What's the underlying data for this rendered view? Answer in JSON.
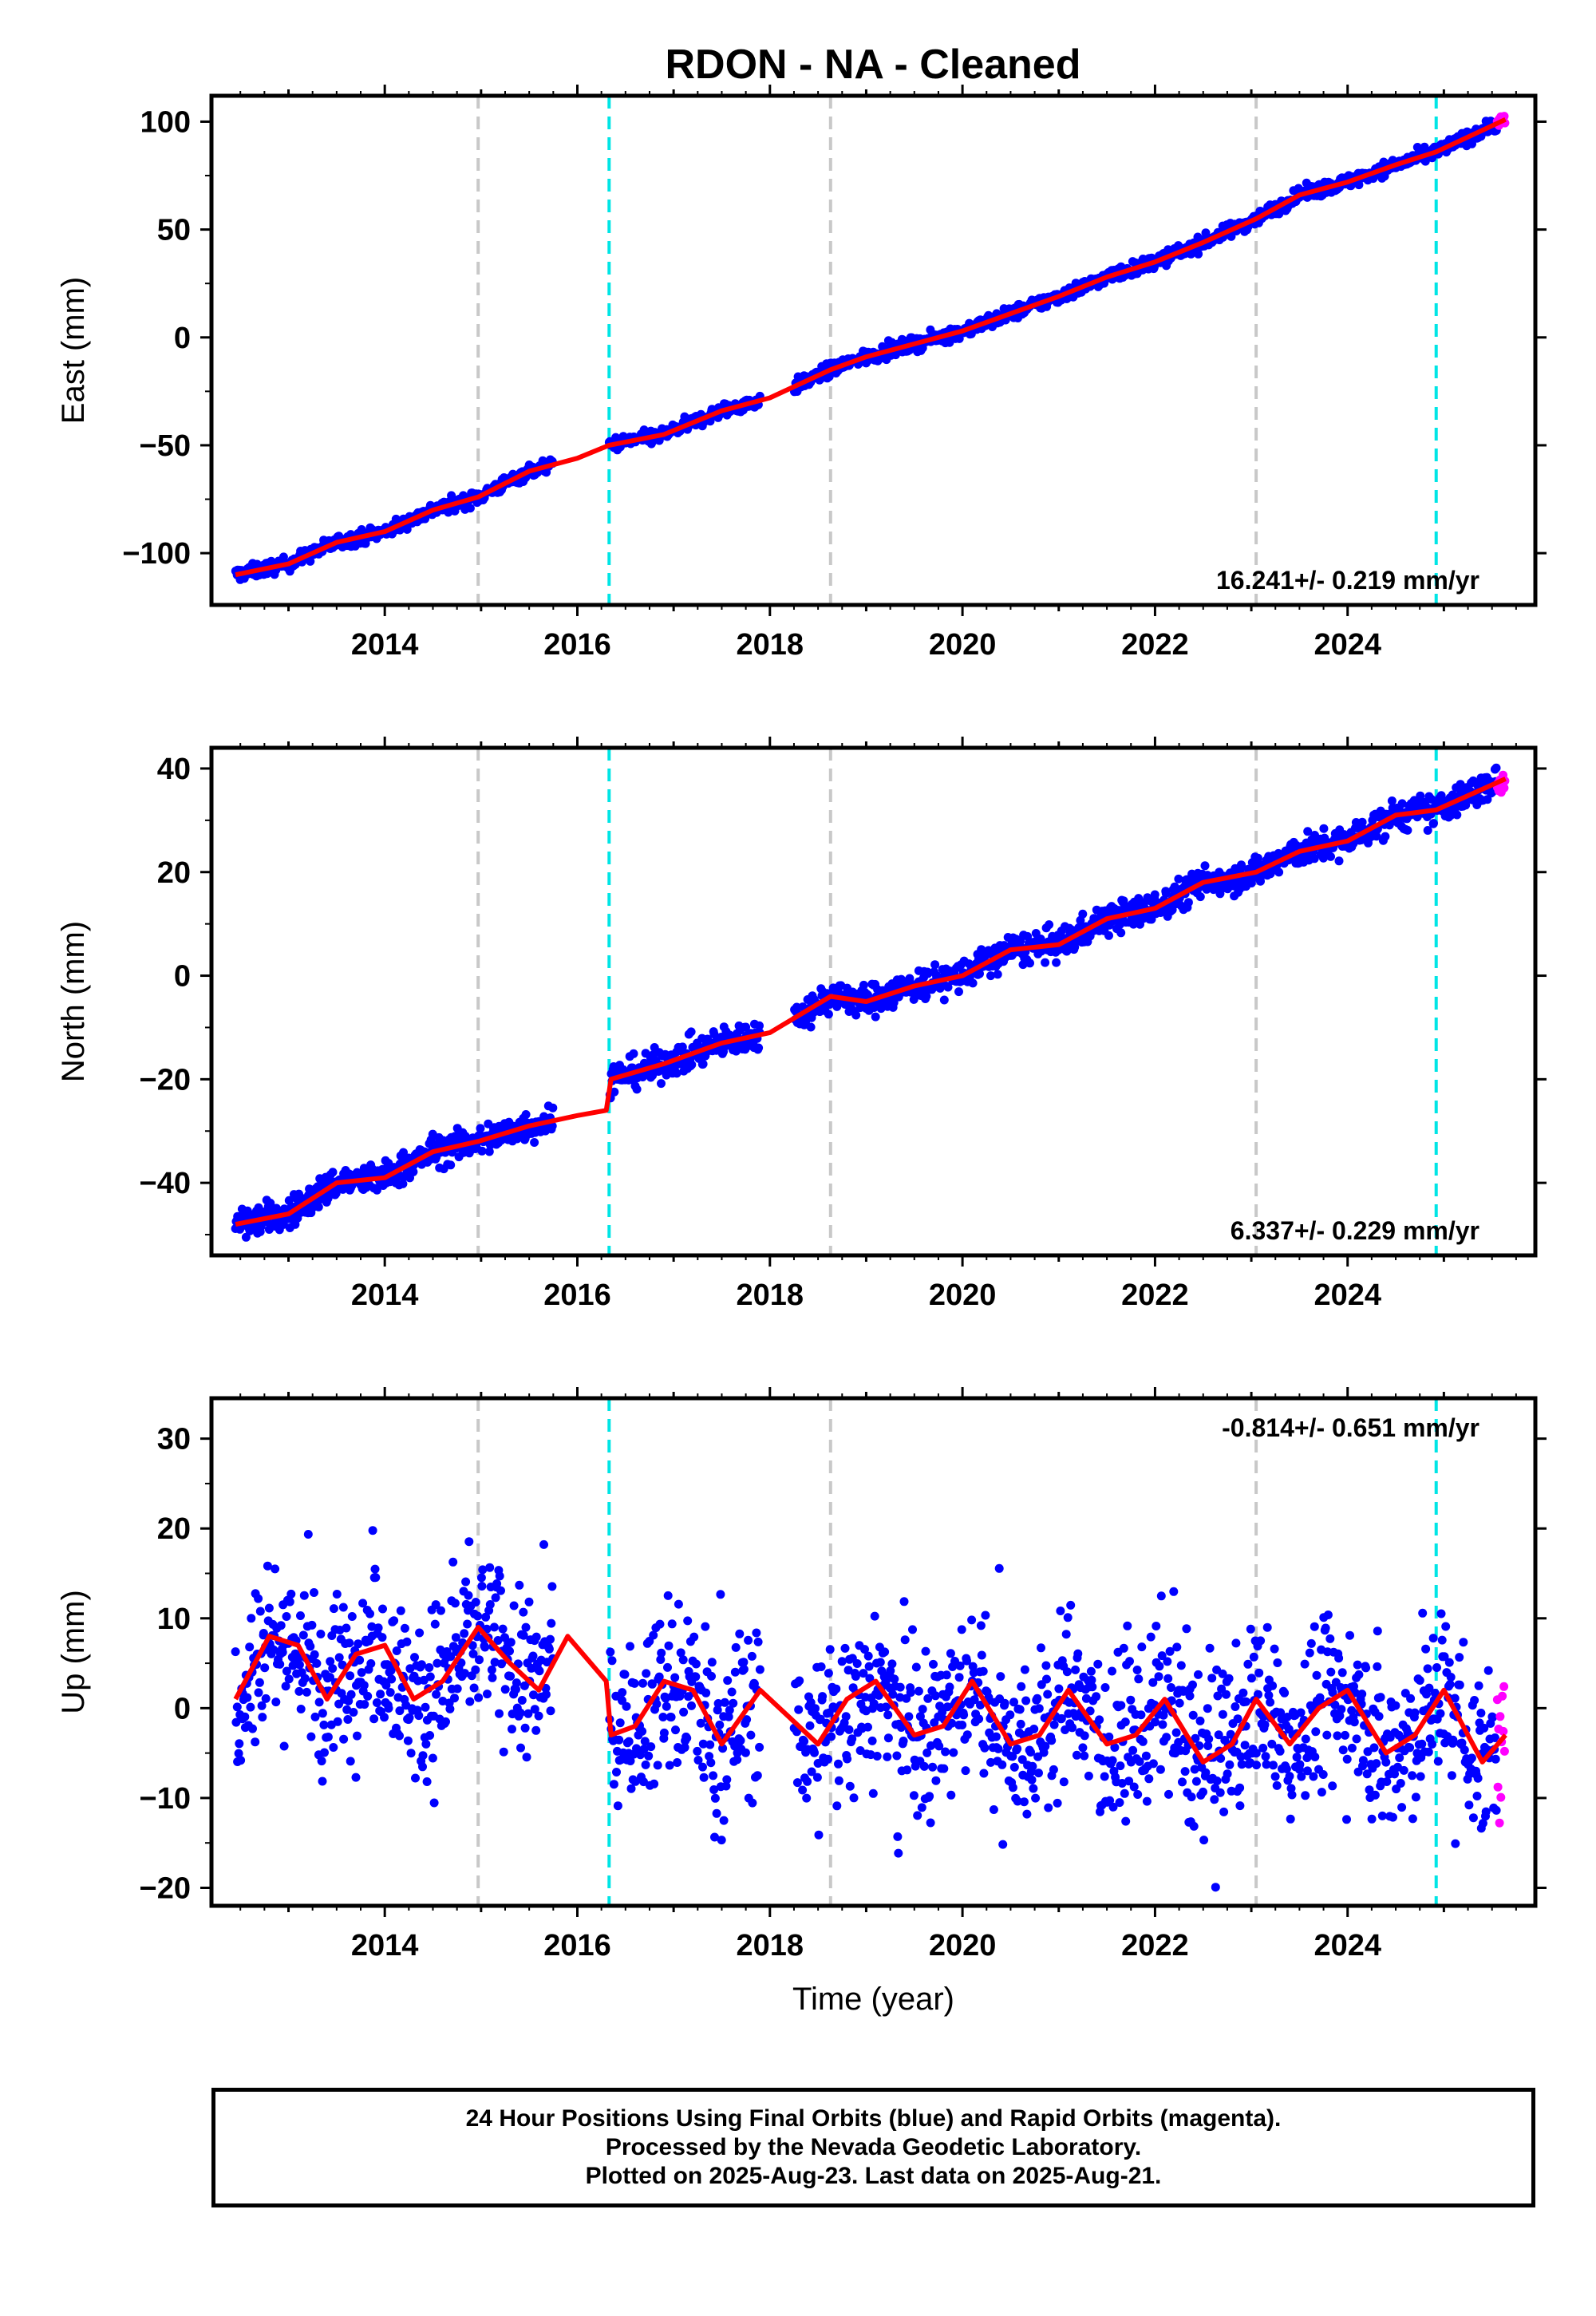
{
  "title": "RDON  - NA - Cleaned",
  "colors": {
    "final_orbits": "#0000ff",
    "rapid_orbits": "#ff00ff",
    "model": "#ff0000",
    "equipment_change": "#c8c8c8",
    "offset_marker": "#00e5e5"
  },
  "events": {
    "gray_dashed": [
      2014.97,
      2018.63,
      2023.05
    ],
    "cyan_dashed": [
      2016.33,
      2024.92
    ]
  },
  "footer": {
    "line1": "24 Hour Positions Using Final Orbits (blue) and Rapid Orbits (magenta).",
    "line2": "Processed by the Nevada Geodetic Laboratory.",
    "line3": "Plotted on 2025-Aug-23. Last data on 2025-Aug-21."
  },
  "chart_data": [
    {
      "id": "east",
      "type": "scatter",
      "ylabel": "East (mm)",
      "xlabel": "",
      "xlim": [
        2012.2,
        2025.95
      ],
      "ylim": [
        -124,
        112
      ],
      "xticks": [
        2014,
        2016,
        2018,
        2020,
        2022,
        2024
      ],
      "yticks": [
        -100,
        -50,
        0,
        50,
        100
      ],
      "rate_label": "16.241+/- 0.219 mm/yr",
      "rate_position": "bottom-right",
      "data_span": [
        2012.45,
        2025.64
      ],
      "rapid_span": [
        2025.5,
        2025.64
      ],
      "gap": [
        2017.9,
        2018.25
      ],
      "model": {
        "x": [
          2012.45,
          2013.0,
          2013.5,
          2014.0,
          2014.5,
          2014.97,
          2015.5,
          2016.0,
          2016.33,
          2016.9,
          2017.5,
          2018.0,
          2018.63,
          2019.0,
          2019.5,
          2020.0,
          2020.5,
          2021.0,
          2021.5,
          2022.0,
          2022.5,
          2023.05,
          2023.5,
          2024.0,
          2024.5,
          2024.92,
          2025.64
        ],
        "y": [
          -110,
          -105,
          -95,
          -90,
          -80,
          -74,
          -62,
          -56,
          -50,
          -45,
          -34,
          -28,
          -15,
          -9,
          -3,
          3,
          11,
          19,
          28,
          35,
          44,
          55,
          66,
          72,
          80,
          86,
          101
        ]
      }
    },
    {
      "id": "north",
      "type": "scatter",
      "ylabel": "North (mm)",
      "xlabel": "",
      "xlim": [
        2012.2,
        2025.95
      ],
      "ylim": [
        -54,
        44
      ],
      "xticks": [
        2014,
        2016,
        2018,
        2020,
        2022,
        2024
      ],
      "yticks": [
        -40,
        -20,
        0,
        20,
        40
      ],
      "rate_label": "6.337+/- 0.229 mm/yr",
      "rate_position": "bottom-right",
      "data_span": [
        2012.45,
        2025.64
      ],
      "rapid_span": [
        2025.5,
        2025.64
      ],
      "gap": [
        2017.9,
        2018.25
      ],
      "model": {
        "x": [
          2012.45,
          2013.0,
          2013.5,
          2014.0,
          2014.5,
          2014.97,
          2015.5,
          2016.0,
          2016.3,
          2016.35,
          2016.9,
          2017.5,
          2018.0,
          2018.63,
          2019.0,
          2019.5,
          2020.0,
          2020.5,
          2021.0,
          2021.5,
          2022.0,
          2022.5,
          2023.05,
          2023.5,
          2024.0,
          2024.5,
          2024.92,
          2025.64
        ],
        "y": [
          -48,
          -46,
          -40,
          -39,
          -34,
          -32,
          -29,
          -27,
          -26,
          -20,
          -17,
          -13,
          -11,
          -4,
          -5,
          -2,
          0,
          5,
          6,
          11,
          13,
          18,
          20,
          24,
          26,
          31,
          32,
          38
        ]
      }
    },
    {
      "id": "up",
      "type": "scatter",
      "ylabel": "Up (mm)",
      "xlabel": "Time (year)",
      "xlim": [
        2012.2,
        2025.95
      ],
      "ylim": [
        -22,
        34.5
      ],
      "xticks": [
        2014,
        2016,
        2018,
        2020,
        2022,
        2024
      ],
      "yticks": [
        -20,
        -10,
        0,
        10,
        20,
        30
      ],
      "rate_label": "-0.814+/- 0.651 mm/yr",
      "rate_position": "top-right",
      "data_span": [
        2012.45,
        2025.64
      ],
      "rapid_span": [
        2025.5,
        2025.64
      ],
      "gap": [
        2017.9,
        2018.25
      ],
      "model": {
        "x": [
          2012.45,
          2012.8,
          2013.1,
          2013.4,
          2013.7,
          2014.0,
          2014.3,
          2014.6,
          2014.97,
          2015.3,
          2015.6,
          2015.9,
          2016.3,
          2016.35,
          2016.6,
          2016.9,
          2017.2,
          2017.5,
          2017.9,
          2018.2,
          2018.5,
          2018.8,
          2019.1,
          2019.5,
          2019.8,
          2020.1,
          2020.5,
          2020.8,
          2021.1,
          2021.5,
          2021.8,
          2022.1,
          2022.5,
          2022.8,
          2023.05,
          2023.4,
          2023.7,
          2024.0,
          2024.4,
          2024.7,
          2025.0,
          2025.4,
          2025.64
        ],
        "y": [
          1,
          8,
          7,
          1,
          6,
          7,
          1,
          3,
          9,
          5,
          2,
          8,
          3,
          -3,
          -2,
          3,
          2,
          -4,
          2,
          -1,
          -4,
          1,
          3,
          -3,
          -2,
          3,
          -4,
          -3,
          2,
          -4,
          -3,
          1,
          -6,
          -4,
          1,
          -4,
          0,
          2,
          -5,
          -3,
          2,
          -6,
          -3
        ]
      }
    }
  ]
}
